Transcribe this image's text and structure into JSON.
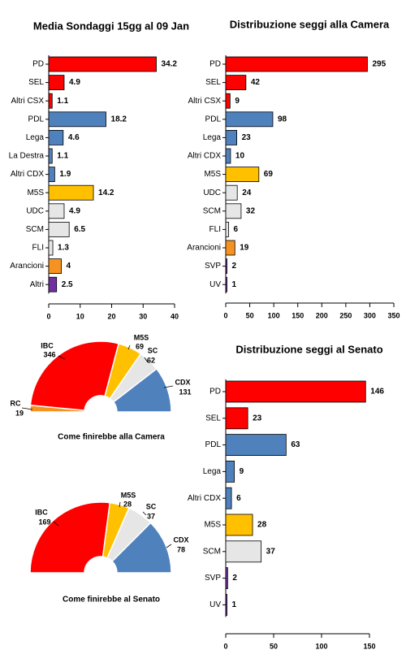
{
  "chart_data": [
    {
      "id": "sondaggi",
      "type": "bar",
      "orientation": "horizontal",
      "title": "Media Sondaggi 15gg al 09 Jan",
      "categories": [
        "PD",
        "SEL",
        "Altri CSX",
        "PDL",
        "Lega",
        "La Destra",
        "Altri CDX",
        "M5S",
        "UDC",
        "SCM",
        "FLI",
        "Arancioni",
        "Altri"
      ],
      "values": [
        34.2,
        4.9,
        1.1,
        18.2,
        4.6,
        1.1,
        1.9,
        14.2,
        4.9,
        6.5,
        1.3,
        4,
        2.5
      ],
      "value_labels": [
        "34.2",
        "4.9",
        "1.1",
        "18.2",
        "4.6",
        "1.1",
        "1.9",
        "14.2",
        "4.9",
        "6.5",
        "1.3",
        "4",
        "2.5"
      ],
      "colors": [
        "#ff0000",
        "#ff0000",
        "#ff0000",
        "#4f81bd",
        "#4f81bd",
        "#4f81bd",
        "#4f81bd",
        "#ffc000",
        "#e6e6e6",
        "#e6e6e6",
        "#e6e6e6",
        "#f59220",
        "#7030a0"
      ],
      "xlim": [
        0,
        40
      ],
      "xticks": [
        "0",
        "10",
        "20",
        "30",
        "40"
      ]
    },
    {
      "id": "camera",
      "type": "bar",
      "orientation": "horizontal",
      "title": "Distribuzione seggi alla Camera",
      "categories": [
        "PD",
        "SEL",
        "Altri CSX",
        "PDL",
        "Lega",
        "Altri CDX",
        "M5S",
        "UDC",
        "SCM",
        "FLI",
        "Arancioni",
        "SVP",
        "UV"
      ],
      "values": [
        295,
        42,
        9,
        98,
        23,
        10,
        69,
        24,
        32,
        6,
        19,
        2,
        1
      ],
      "value_labels": [
        "295",
        "42",
        "9",
        "98",
        "23",
        "10",
        "69",
        "24",
        "32",
        "6",
        "19",
        "2",
        "1"
      ],
      "colors": [
        "#ff0000",
        "#ff0000",
        "#ff0000",
        "#4f81bd",
        "#4f81bd",
        "#4f81bd",
        "#ffc000",
        "#e6e6e6",
        "#e6e6e6",
        "#e6e6e6",
        "#f59220",
        "#7030a0",
        "#7030a0"
      ],
      "xlim": [
        0,
        350
      ],
      "xticks": [
        "0",
        "50",
        "100",
        "150",
        "200",
        "250",
        "300",
        "350"
      ]
    },
    {
      "id": "senato",
      "type": "bar",
      "orientation": "horizontal",
      "title": "Distribuzione seggi al Senato",
      "categories": [
        "PD",
        "SEL",
        "PDL",
        "Lega",
        "Altri CDX",
        "M5S",
        "SCM",
        "SVP",
        "UV"
      ],
      "values": [
        146,
        23,
        63,
        9,
        6,
        28,
        37,
        2,
        1
      ],
      "value_labels": [
        "146",
        "23",
        "63",
        "9",
        "6",
        "28",
        "37",
        "2",
        "1"
      ],
      "colors": [
        "#ff0000",
        "#ff0000",
        "#4f81bd",
        "#4f81bd",
        "#4f81bd",
        "#ffc000",
        "#e6e6e6",
        "#7030a0",
        "#7030a0"
      ],
      "xlim": [
        0,
        150
      ],
      "xticks": [
        "0",
        "50",
        "100",
        "150"
      ]
    },
    {
      "id": "emiciclo_camera",
      "type": "pie",
      "subtype": "half-donut",
      "title": "Come finirebbe alla Camera",
      "slices": [
        {
          "name": "RC",
          "value": 19,
          "label": "19",
          "color": "#f59220"
        },
        {
          "name": "IBC",
          "value": 346,
          "label": "346",
          "color": "#ff0000"
        },
        {
          "name": "M5S",
          "value": 69,
          "label": "69",
          "color": "#ffc000"
        },
        {
          "name": "SC",
          "value": 62,
          "label": "62",
          "color": "#e6e6e6"
        },
        {
          "name": "CDX",
          "value": 131,
          "label": "131",
          "color": "#4f81bd"
        }
      ]
    },
    {
      "id": "emiciclo_senato",
      "type": "pie",
      "subtype": "half-donut",
      "title": "Come finirebbe al Senato",
      "slices": [
        {
          "name": "IBC",
          "value": 169,
          "label": "169",
          "color": "#ff0000"
        },
        {
          "name": "M5S",
          "value": 28,
          "label": "28",
          "color": "#ffc000"
        },
        {
          "name": "SC",
          "value": 37,
          "label": "37",
          "color": "#e6e6e6"
        },
        {
          "name": "CDX",
          "value": 78,
          "label": "78",
          "color": "#4f81bd"
        }
      ]
    }
  ]
}
